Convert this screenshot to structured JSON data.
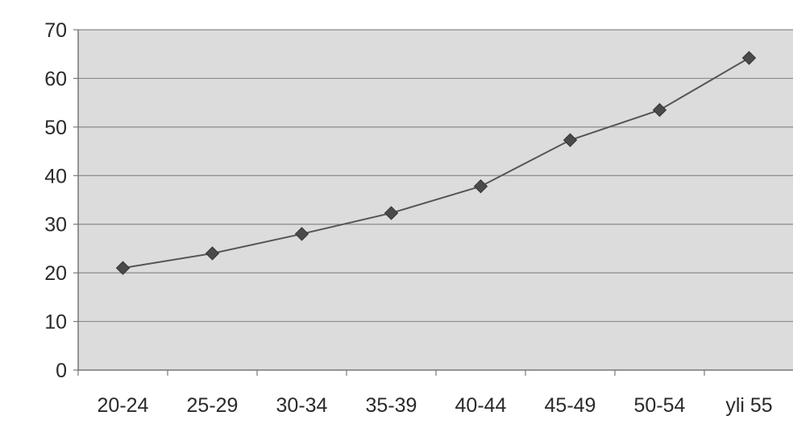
{
  "chart_data": {
    "type": "line",
    "title": "",
    "xlabel": "",
    "ylabel": "",
    "categories": [
      "20-24",
      "25-29",
      "30-34",
      "35-39",
      "40-44",
      "45-49",
      "50-54",
      "yli 55"
    ],
    "series": [
      {
        "values": [
          21,
          24,
          28,
          32.3,
          37.8,
          47.3,
          53.5,
          64.2
        ]
      }
    ],
    "ylim": [
      0,
      70
    ],
    "yticks": [
      "0",
      "10",
      "20",
      "30",
      "40",
      "50",
      "60",
      "70"
    ],
    "grid": true,
    "legend": "none",
    "colors": {
      "plot_background": "#dcdcdc",
      "line": "#555555",
      "marker": "#4a4a4a",
      "gridline": "#8a8a8a"
    }
  }
}
